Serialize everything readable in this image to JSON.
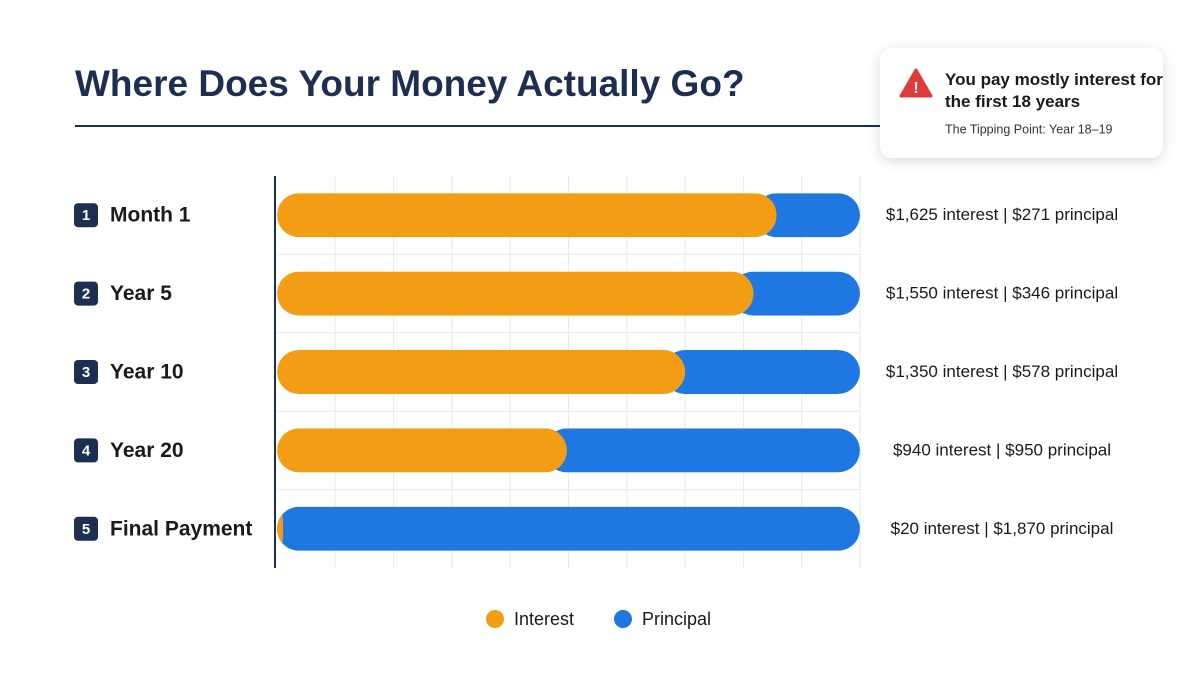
{
  "chart_data": {
    "type": "bar",
    "orientation": "horizontal",
    "stacked": "percent",
    "title": "Where Does Your Money Actually Go?",
    "categories": [
      "Month 1",
      "Year 5",
      "Year 10",
      "Year 20",
      "Final Payment"
    ],
    "category_numbers": [
      1,
      2,
      3,
      4,
      5
    ],
    "series": [
      {
        "name": "Interest",
        "color": "#f29d13",
        "values": [
          1625,
          1550,
          1350,
          940,
          20
        ],
        "value_labels": [
          "$1,625 interest",
          "$1,550 interest",
          "$1,350 interest",
          "$940 interest",
          "$20 interest"
        ]
      },
      {
        "name": "Principal",
        "color": "#1f78e1",
        "values": [
          271,
          346,
          578,
          950,
          1870
        ],
        "value_labels": [
          "$271 principal",
          "$346 principal",
          "$578 principal",
          "$950 principal",
          "$1,870 principal"
        ]
      }
    ],
    "value_label_separator": "|",
    "grid": true,
    "legend": "bottom",
    "annotation": {
      "title": "You pay mostly interest for the first 18 years",
      "text": "The Tipping Point: Year 18–19"
    }
  }
}
